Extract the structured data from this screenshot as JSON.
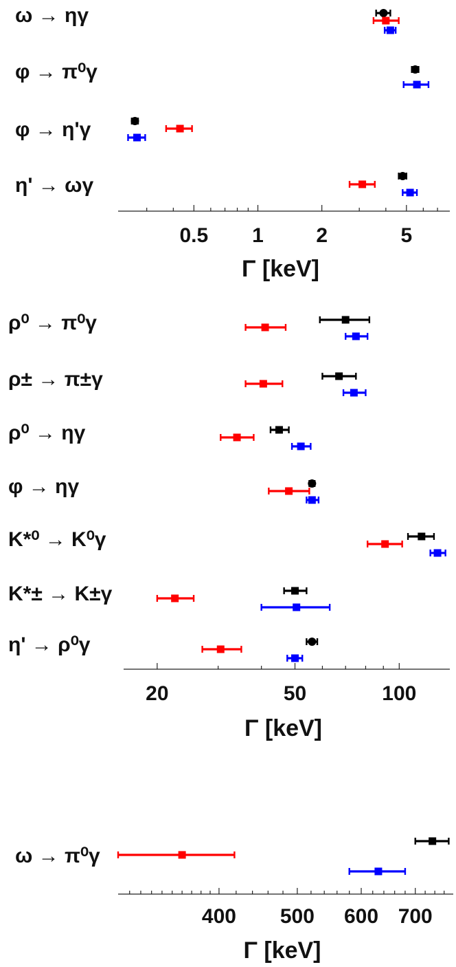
{
  "chart_data": [
    {
      "type": "scatter",
      "xscale": "log",
      "xlabel": "Γ [keV]",
      "xlim": [
        0.22,
        8.0
      ],
      "ticks": [
        {
          "v": 0.5,
          "label": "0.5"
        },
        {
          "v": 1,
          "label": "1"
        },
        {
          "v": 2,
          "label": "2"
        },
        {
          "v": 5,
          "label": "5"
        }
      ],
      "minor_ticks": [
        0.3,
        0.4,
        0.6,
        0.7,
        0.8,
        0.9,
        3,
        4,
        6,
        7
      ],
      "rows": [
        {
          "label": "ω → ηγ",
          "points": [
            {
              "color": "#000000",
              "value": 3.9,
              "lo": 3.6,
              "hi": 4.2,
              "marker": "circle"
            },
            {
              "color": "#ff0000",
              "value": 4.0,
              "lo": 3.5,
              "hi": 4.6,
              "marker": "square"
            },
            {
              "color": "#0000ff",
              "value": 4.2,
              "lo": 3.95,
              "hi": 4.45,
              "marker": "square"
            }
          ]
        },
        {
          "label": "φ → π⁰γ",
          "points": [
            {
              "color": "#000000",
              "value": 5.5,
              "lo": 5.3,
              "hi": 5.7,
              "marker": "circle"
            },
            {
              "color": "#0000ff",
              "value": 5.6,
              "lo": 4.85,
              "hi": 6.35,
              "marker": "square"
            }
          ]
        },
        {
          "label": "φ → η'γ",
          "points": [
            {
              "color": "#000000",
              "value": 0.264,
              "lo": 0.255,
              "hi": 0.273,
              "marker": "circle"
            },
            {
              "color": "#ff0000",
              "value": 0.43,
              "lo": 0.37,
              "hi": 0.49,
              "marker": "square"
            },
            {
              "color": "#0000ff",
              "value": 0.27,
              "lo": 0.245,
              "hi": 0.295,
              "marker": "square"
            }
          ]
        },
        {
          "label": "η' → ωγ",
          "points": [
            {
              "color": "#000000",
              "value": 4.8,
              "lo": 4.6,
              "hi": 5.0,
              "marker": "circle"
            },
            {
              "color": "#ff0000",
              "value": 3.1,
              "lo": 2.7,
              "hi": 3.55,
              "marker": "square"
            },
            {
              "color": "#0000ff",
              "value": 5.2,
              "lo": 4.8,
              "hi": 5.6,
              "marker": "square"
            }
          ]
        }
      ]
    },
    {
      "type": "scatter",
      "xscale": "log",
      "xlabel": "Γ [keV]",
      "xlim": [
        16.0,
        140.0
      ],
      "ticks": [
        {
          "v": 20,
          "label": "20"
        },
        {
          "v": 50,
          "label": "50"
        },
        {
          "v": 100,
          "label": "100"
        }
      ],
      "minor_ticks": [
        30,
        40,
        60,
        70,
        80,
        90
      ],
      "rows": [
        {
          "label": "ρ⁰ → π⁰γ",
          "points": [
            {
              "color": "#000000",
              "value": 70,
              "lo": 59,
              "hi": 82,
              "marker": "square"
            },
            {
              "color": "#ff0000",
              "value": 41,
              "lo": 36,
              "hi": 47,
              "marker": "square"
            },
            {
              "color": "#0000ff",
              "value": 75,
              "lo": 70,
              "hi": 81,
              "marker": "square"
            }
          ]
        },
        {
          "label": "ρ± → π±γ",
          "points": [
            {
              "color": "#000000",
              "value": 67,
              "lo": 60,
              "hi": 75,
              "marker": "square"
            },
            {
              "color": "#ff0000",
              "value": 40.5,
              "lo": 36,
              "hi": 46,
              "marker": "square"
            },
            {
              "color": "#0000ff",
              "value": 74,
              "lo": 69,
              "hi": 80,
              "marker": "square"
            }
          ]
        },
        {
          "label": "ρ⁰ → ηγ",
          "points": [
            {
              "color": "#000000",
              "value": 45,
              "lo": 42.5,
              "hi": 48,
              "marker": "square"
            },
            {
              "color": "#ff0000",
              "value": 34,
              "lo": 30.5,
              "hi": 38,
              "marker": "square"
            },
            {
              "color": "#0000ff",
              "value": 52,
              "lo": 49,
              "hi": 55.5,
              "marker": "square"
            }
          ]
        },
        {
          "label": "φ → ηγ",
          "points": [
            {
              "color": "#000000",
              "value": 56,
              "lo": 55,
              "hi": 57,
              "marker": "circle"
            },
            {
              "color": "#ff0000",
              "value": 48,
              "lo": 42,
              "hi": 55,
              "marker": "square"
            },
            {
              "color": "#0000ff",
              "value": 56,
              "lo": 54,
              "hi": 58.5,
              "marker": "square"
            }
          ]
        },
        {
          "label": "K*⁰ → K⁰γ",
          "points": [
            {
              "color": "#000000",
              "value": 116,
              "lo": 106,
              "hi": 126,
              "marker": "square"
            },
            {
              "color": "#ff0000",
              "value": 91,
              "lo": 81,
              "hi": 102,
              "marker": "square"
            },
            {
              "color": "#0000ff",
              "value": 129,
              "lo": 123,
              "hi": 136,
              "marker": "square"
            }
          ]
        },
        {
          "label": "K*± → K±γ",
          "points": [
            {
              "color": "#000000",
              "value": 50,
              "lo": 46.5,
              "hi": 54,
              "marker": "square"
            },
            {
              "color": "#ff0000",
              "value": 22.5,
              "lo": 20,
              "hi": 25.5,
              "marker": "square"
            },
            {
              "color": "#0000ff",
              "value": 50.5,
              "lo": 40,
              "hi": 63,
              "marker": "square"
            }
          ]
        },
        {
          "label": "η' → ρ⁰γ",
          "points": [
            {
              "color": "#000000",
              "value": 56,
              "lo": 54,
              "hi": 58,
              "marker": "circle"
            },
            {
              "color": "#ff0000",
              "value": 30.5,
              "lo": 27,
              "hi": 35,
              "marker": "square"
            },
            {
              "color": "#0000ff",
              "value": 50,
              "lo": 47.5,
              "hi": 52.5,
              "marker": "square"
            }
          ]
        }
      ]
    },
    {
      "type": "scatter",
      "xscale": "log",
      "xlabel": "Γ [keV]",
      "xlim": [
        300,
        780
      ],
      "ticks": [
        {
          "v": 400,
          "label": "400"
        },
        {
          "v": 500,
          "label": "500"
        },
        {
          "v": 600,
          "label": "600"
        },
        {
          "v": 700,
          "label": "700"
        }
      ],
      "minor_ticks": [
        310,
        320,
        330,
        340,
        350,
        360,
        370,
        380,
        390,
        420,
        440,
        460,
        480,
        520,
        540,
        560,
        580,
        620,
        640,
        660,
        680,
        720,
        740,
        760
      ],
      "rows": [
        {
          "label": "ω → π⁰γ",
          "points": [
            {
              "color": "#000000",
              "value": 735,
              "lo": 700,
              "hi": 770,
              "marker": "square"
            },
            {
              "color": "#ff0000",
              "value": 360,
              "lo": 300,
              "hi": 418,
              "marker": "square"
            },
            {
              "color": "#0000ff",
              "value": 630,
              "lo": 580,
              "hi": 680,
              "marker": "square"
            }
          ]
        }
      ]
    }
  ]
}
